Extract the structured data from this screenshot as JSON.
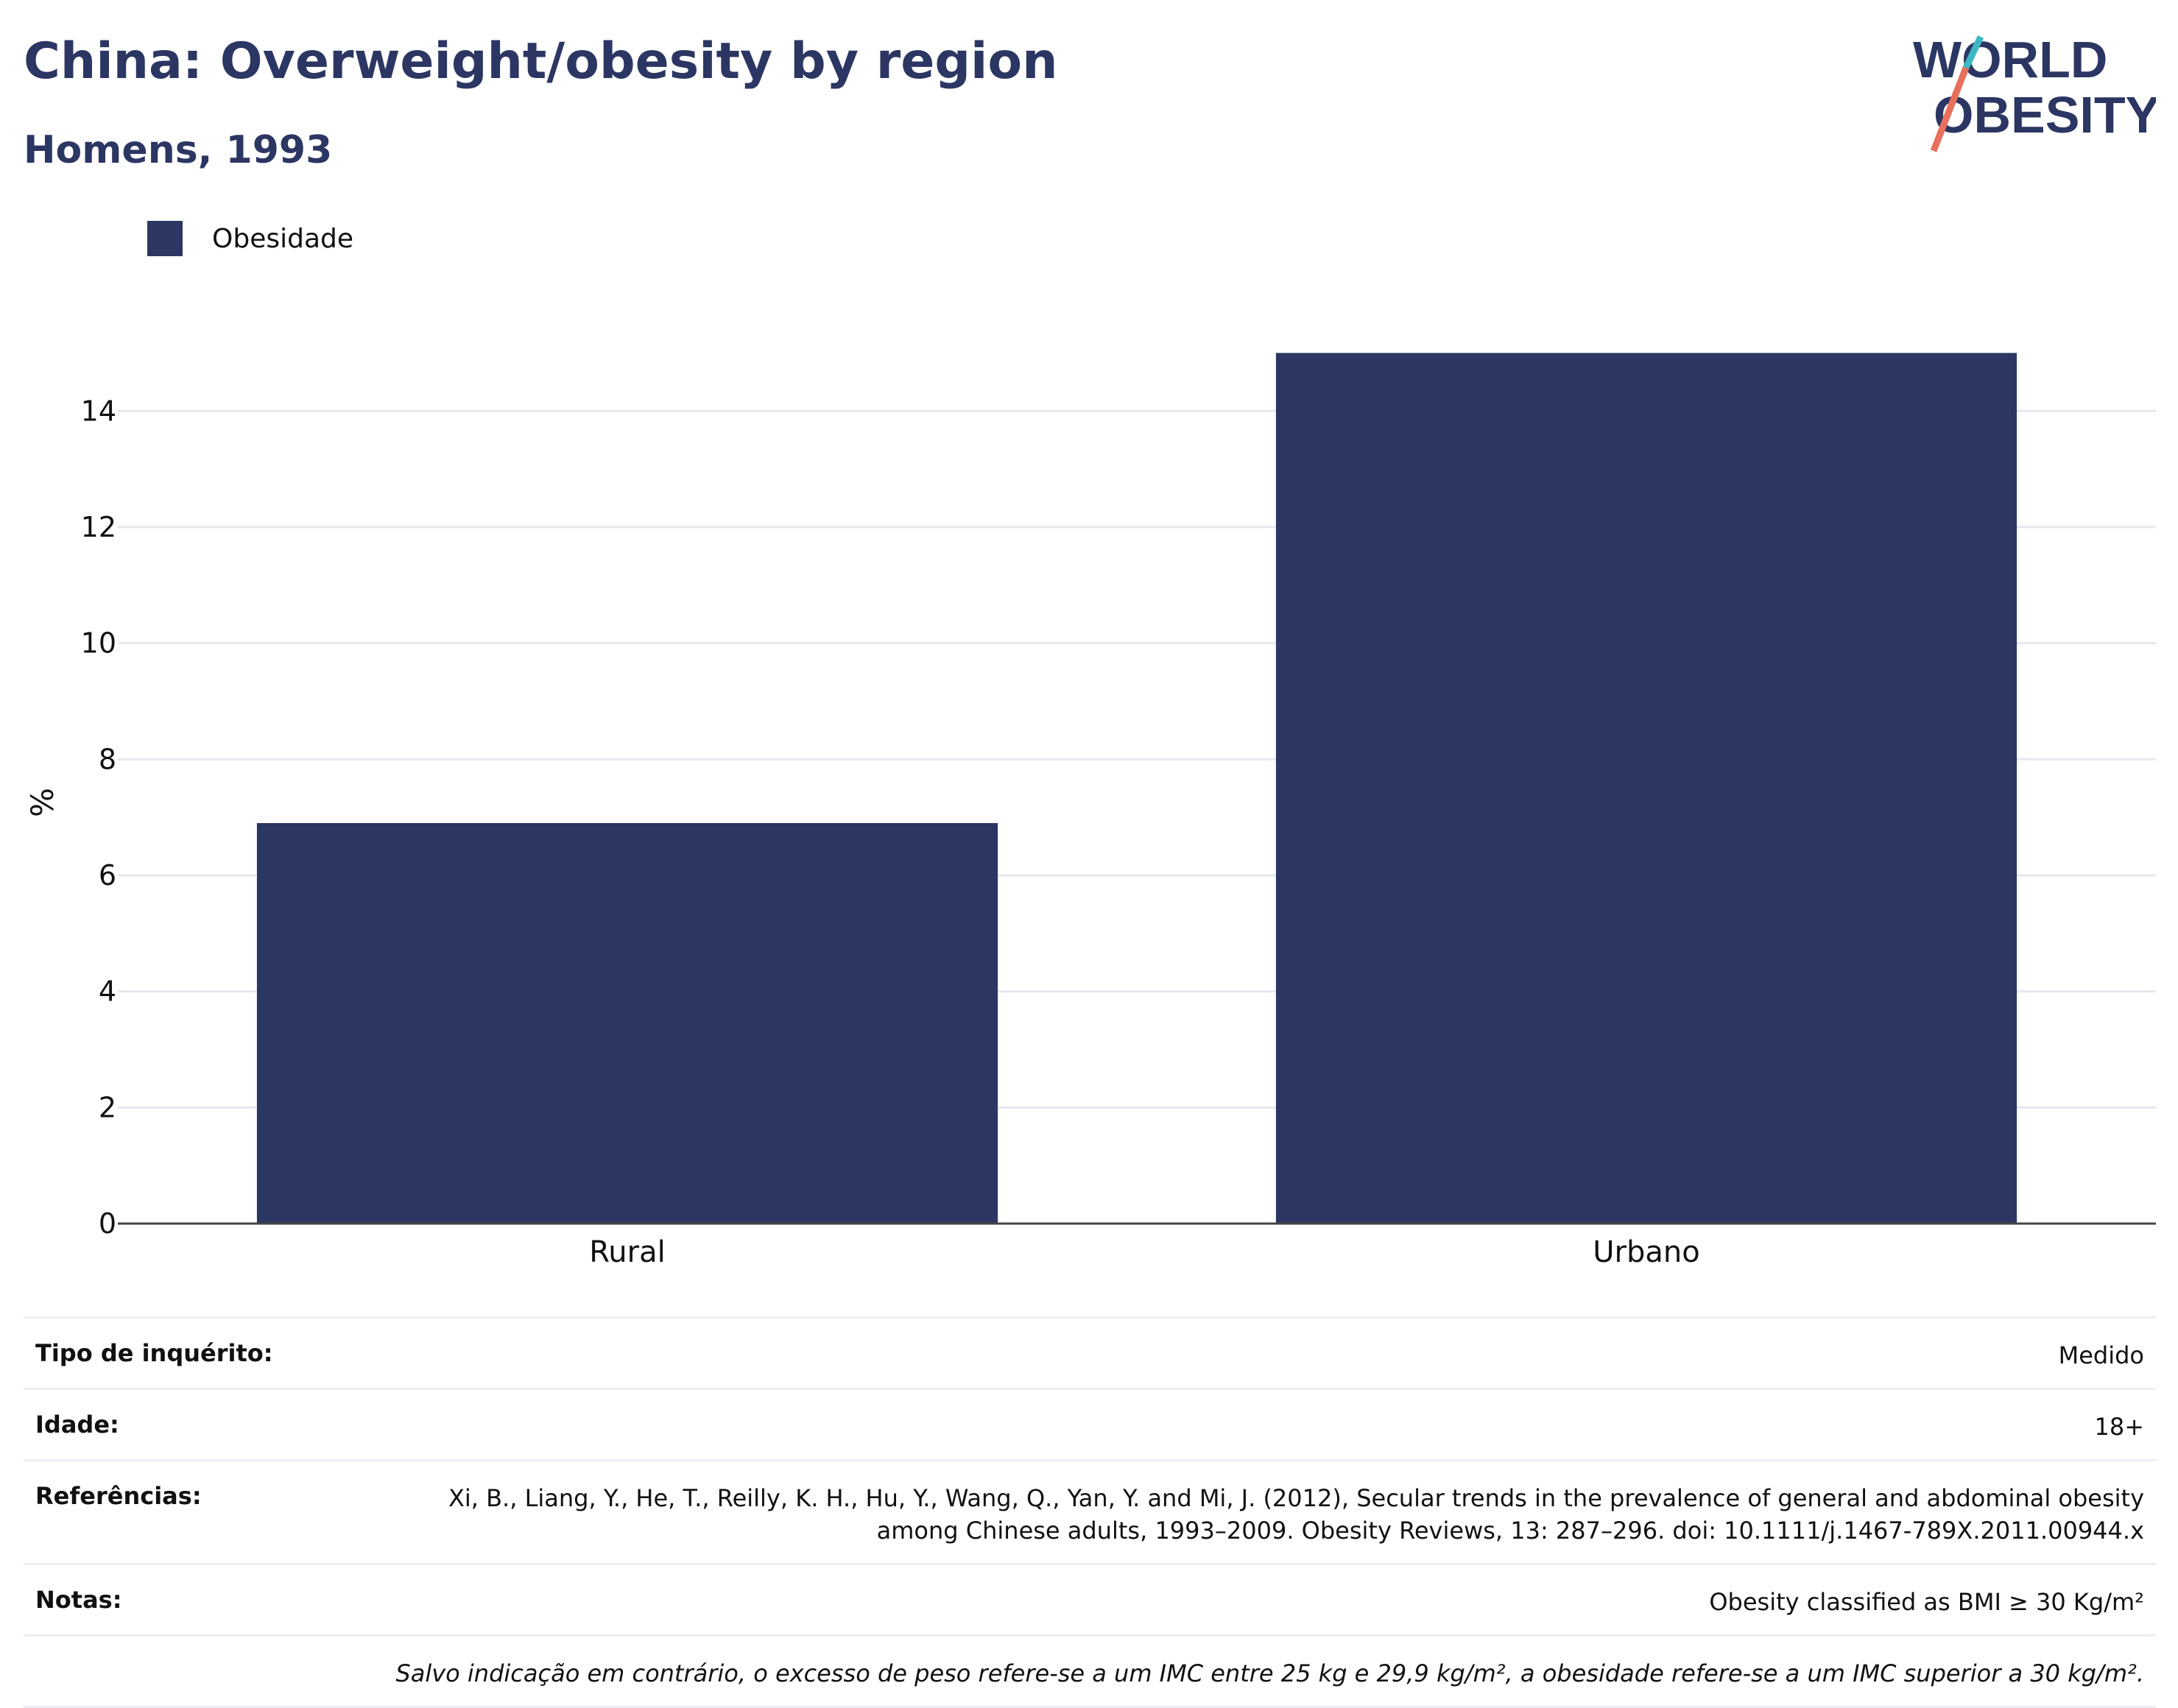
{
  "header": {
    "title": "China: Overweight/obesity by region",
    "subtitle": "Homens, 1993",
    "logo_line1": "WORLD",
    "logo_line2": "OBESITY"
  },
  "colors": {
    "bar": "#2b3663",
    "title": "#2b3663",
    "grid": "#e6e8ee",
    "logo_teal": "#3bb8c3",
    "logo_coral": "#e8705c"
  },
  "chart_data": {
    "type": "bar",
    "title": "China: Overweight/obesity by region",
    "subtitle": "Homens, 1993",
    "categories": [
      "Rural",
      "Urbano"
    ],
    "series": [
      {
        "name": "Obesidade",
        "values": [
          6.9,
          15.0
        ]
      }
    ],
    "ylabel": "%",
    "xlabel": "",
    "ylim": [
      0,
      15.5
    ],
    "yticks": [
      0,
      2,
      4,
      6,
      8,
      10,
      12,
      14
    ],
    "grid": true,
    "legend_position": "top-left"
  },
  "info": {
    "survey_label": "Tipo de inquérito:",
    "survey_value": "Medido",
    "age_label": "Idade:",
    "age_value": "18+",
    "ref_label": "Referências:",
    "ref_value": "Xi, B., Liang, Y., He, T., Reilly, K. H., Hu, Y., Wang, Q., Yan, Y. and Mi, J. (2012), Secular trends in the prevalence of general and abdominal obesity among Chinese adults, 1993–2009. Obesity Reviews, 13: 287–296. doi: 10.1111/j.1467-789X.2011.00944.x",
    "notes_label": "Notas:",
    "notes_value": "Obesity classified as BMI ≥ 30 Kg/m²",
    "footnote": "Salvo indicação em contrário, o excesso de peso refere-se a um IMC entre 25 kg e 29,9 kg/m², a obesidade refere-se a um IMC superior a 30 kg/m²."
  }
}
